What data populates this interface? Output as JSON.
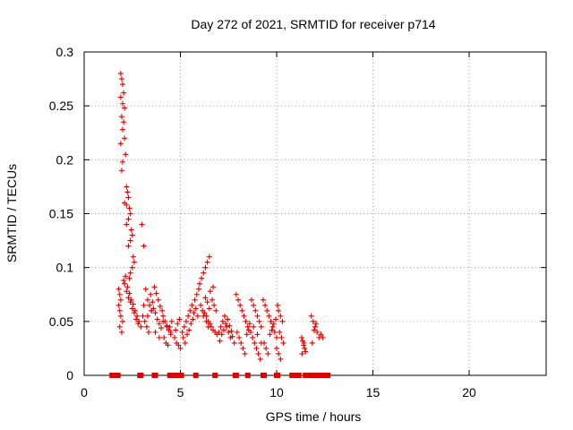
{
  "chart_data": {
    "type": "scatter",
    "title": "Day 272 of 2021, SRMTID for receiver p714",
    "xlabel": "GPS time / hours",
    "ylabel": "SRMTID / TECUs",
    "xlim": [
      0,
      24
    ],
    "ylim": [
      0,
      0.3
    ],
    "x_ticks": [
      0,
      5,
      10,
      15,
      20
    ],
    "y_ticks": [
      0,
      0.05,
      0.1,
      0.15,
      0.2,
      0.25,
      0.3
    ],
    "x_tick_labels": [
      "0",
      "5",
      "10",
      "15",
      "20"
    ],
    "y_tick_labels": [
      "0",
      "0.05",
      "0.1",
      "0.15",
      "0.2",
      "0.25",
      "0.3"
    ],
    "grid": true,
    "marker_color": "#e00000",
    "series": [
      {
        "name": "SRMTID",
        "marker": "+",
        "x": [
          1.9,
          1.95,
          2.0,
          2.05,
          1.9,
          2.0,
          2.1,
          1.95,
          2.05,
          2.0,
          2.1,
          1.9,
          2.15,
          2.0,
          1.95,
          2.2,
          2.25,
          2.3,
          2.1,
          2.2,
          2.35,
          2.4,
          2.3,
          2.2,
          2.45,
          2.5,
          2.4,
          2.3,
          2.55,
          2.6,
          2.5,
          2.4,
          2.35,
          1.8,
          1.85,
          1.9,
          1.8,
          1.85,
          1.9,
          2.0,
          2.1,
          2.2,
          2.3,
          2.4,
          2.5,
          2.6,
          2.7,
          2.8,
          1.85,
          1.95,
          2.05,
          2.15,
          2.25,
          2.35,
          2.45,
          2.55,
          2.65,
          2.75,
          2.85,
          2.95,
          3.0,
          3.1,
          3.2,
          3.3,
          3.4,
          3.5,
          3.05,
          3.15,
          3.25,
          3.35,
          3.45,
          3.55,
          3.6,
          3.7,
          3.8,
          3.9,
          4.0,
          3.65,
          3.75,
          3.85,
          3.95,
          4.05,
          4.1,
          4.2,
          4.3,
          4.4,
          4.5,
          4.15,
          4.25,
          4.35,
          4.45,
          4.55,
          3.1,
          3.3,
          3.5,
          3.7,
          3.9,
          4.1,
          4.3,
          4.5,
          4.7,
          4.8,
          4.9,
          5.0,
          4.75,
          4.85,
          4.95,
          5.1,
          5.2,
          5.3,
          5.4,
          5.5,
          5.6,
          5.15,
          5.25,
          5.35,
          5.45,
          5.55,
          5.65,
          5.7,
          5.8,
          5.9,
          5.75,
          5.85,
          5.95,
          6.0,
          6.1,
          6.2,
          6.3,
          6.4,
          6.5,
          6.05,
          6.15,
          6.25,
          6.35,
          6.45,
          6.55,
          6.6,
          6.7,
          6.8,
          6.9,
          6.65,
          6.75,
          6.85,
          6.3,
          6.4,
          6.5,
          6.2,
          6.35,
          6.45,
          6.55,
          6.7,
          7.0,
          7.1,
          7.2,
          7.3,
          7.4,
          7.5,
          7.6,
          7.05,
          7.15,
          7.25,
          7.35,
          7.45,
          7.55,
          7.65,
          7.7,
          7.8,
          7.9,
          8.0,
          8.1,
          8.2,
          8.3,
          8.4,
          8.5,
          7.95,
          8.05,
          8.15,
          8.25,
          8.35,
          8.45,
          8.55,
          8.6,
          8.7,
          8.8,
          8.9,
          9.0,
          9.1,
          9.2,
          8.65,
          8.75,
          8.85,
          8.95,
          9.05,
          9.15,
          8.8,
          9.0,
          9.2,
          9.3,
          9.4,
          9.5,
          9.6,
          9.7,
          9.8,
          9.9,
          10.0,
          9.35,
          9.45,
          9.55,
          9.65,
          9.75,
          9.85,
          9.95,
          10.05,
          10.1,
          10.2,
          10.3,
          10.15,
          10.25,
          10.35,
          10.0,
          10.1,
          10.2,
          11.3,
          11.35,
          11.4,
          11.45,
          11.5,
          11.32,
          11.42,
          11.8,
          11.9,
          12.0,
          12.1,
          12.2,
          11.85,
          11.95,
          12.05,
          12.3,
          12.4
        ],
        "y": [
          0.28,
          0.275,
          0.27,
          0.262,
          0.258,
          0.252,
          0.248,
          0.24,
          0.235,
          0.228,
          0.22,
          0.215,
          0.205,
          0.198,
          0.19,
          0.175,
          0.17,
          0.165,
          0.16,
          0.158,
          0.155,
          0.15,
          0.145,
          0.14,
          0.135,
          0.13,
          0.125,
          0.12,
          0.11,
          0.105,
          0.1,
          0.095,
          0.09,
          0.08,
          0.075,
          0.07,
          0.065,
          0.06,
          0.055,
          0.05,
          0.085,
          0.078,
          0.072,
          0.068,
          0.062,
          0.058,
          0.052,
          0.048,
          0.045,
          0.04,
          0.088,
          0.092,
          0.082,
          0.076,
          0.07,
          0.066,
          0.06,
          0.055,
          0.05,
          0.045,
          0.14,
          0.12,
          0.08,
          0.07,
          0.065,
          0.06,
          0.055,
          0.05,
          0.045,
          0.04,
          0.075,
          0.068,
          0.062,
          0.058,
          0.052,
          0.048,
          0.044,
          0.082,
          0.076,
          0.07,
          0.064,
          0.06,
          0.055,
          0.05,
          0.046,
          0.042,
          0.038,
          0.035,
          0.03,
          0.028,
          0.045,
          0.05,
          0.065,
          0.055,
          0.06,
          0.04,
          0.035,
          0.05,
          0.045,
          0.04,
          0.035,
          0.03,
          0.028,
          0.025,
          0.042,
          0.048,
          0.052,
          0.04,
          0.045,
          0.05,
          0.055,
          0.06,
          0.065,
          0.035,
          0.03,
          0.038,
          0.042,
          0.048,
          0.052,
          0.058,
          0.062,
          0.055,
          0.07,
          0.075,
          0.08,
          0.085,
          0.09,
          0.095,
          0.1,
          0.105,
          0.11,
          0.065,
          0.06,
          0.058,
          0.055,
          0.05,
          0.048,
          0.045,
          0.042,
          0.04,
          0.038,
          0.07,
          0.065,
          0.06,
          0.072,
          0.068,
          0.062,
          0.055,
          0.05,
          0.045,
          0.078,
          0.082,
          0.04,
          0.045,
          0.05,
          0.055,
          0.045,
          0.04,
          0.035,
          0.032,
          0.038,
          0.042,
          0.048,
          0.052,
          0.046,
          0.041,
          0.036,
          0.03,
          0.075,
          0.07,
          0.065,
          0.06,
          0.055,
          0.05,
          0.045,
          0.04,
          0.035,
          0.03,
          0.025,
          0.02,
          0.038,
          0.042,
          0.048,
          0.07,
          0.065,
          0.06,
          0.055,
          0.05,
          0.045,
          0.04,
          0.035,
          0.03,
          0.025,
          0.02,
          0.015,
          0.045,
          0.038,
          0.03,
          0.07,
          0.065,
          0.06,
          0.055,
          0.05,
          0.045,
          0.04,
          0.035,
          0.03,
          0.025,
          0.02,
          0.038,
          0.042,
          0.048,
          0.052,
          0.065,
          0.06,
          0.055,
          0.05,
          0.04,
          0.035,
          0.03,
          0.025,
          0.02,
          0.015,
          0.035,
          0.032,
          0.028,
          0.025,
          0.022,
          0.02,
          0.03,
          0.055,
          0.05,
          0.045,
          0.04,
          0.035,
          0.03,
          0.042,
          0.048,
          0.038,
          0.035
        ]
      },
      {
        "name": "flags",
        "marker": "square",
        "x": [
          1.45,
          1.55,
          1.65,
          1.75,
          2.9,
          2.95,
          3.65,
          3.7,
          4.45,
          4.7,
          4.75,
          4.85,
          5.0,
          5.05,
          5.8,
          6.8,
          7.85,
          7.9,
          8.5,
          9.3,
          9.35,
          10.0,
          10.05,
          10.8,
          11.0,
          11.15,
          11.5,
          11.6,
          11.75,
          11.85,
          12.1,
          12.25,
          12.4,
          12.55,
          12.65
        ],
        "y": [
          0,
          0,
          0,
          0,
          0,
          0,
          0,
          0,
          0,
          0,
          0,
          0,
          0,
          0,
          0,
          0,
          0,
          0,
          0,
          0,
          0,
          0,
          0,
          0,
          0,
          0,
          0,
          0,
          0,
          0,
          0,
          0,
          0,
          0,
          0
        ]
      }
    ]
  }
}
